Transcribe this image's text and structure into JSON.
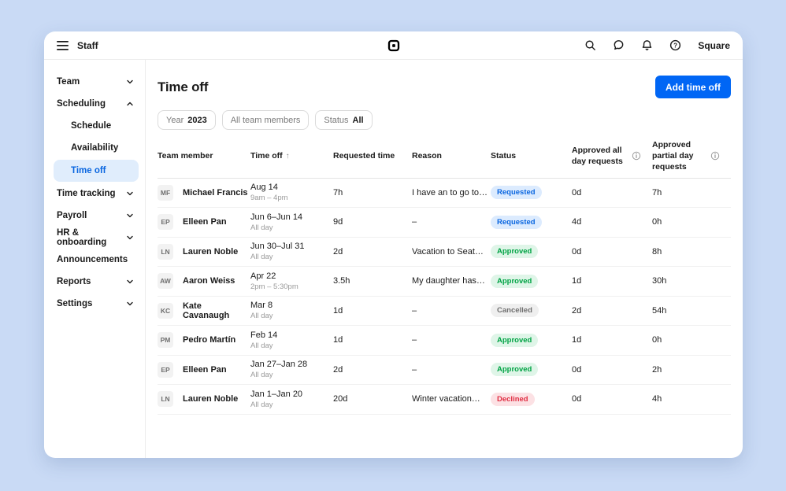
{
  "colors": {
    "page_background": "#C9DAF5",
    "accent_blue": "#0066F5",
    "selected_nav_bg": "#E0EDFC",
    "selected_nav_text": "#0A66E0"
  },
  "topbar": {
    "app_label": "Staff",
    "account_label": "Square",
    "icons": [
      "menu-icon",
      "square-logo-icon",
      "search-icon",
      "chat-icon",
      "notifications-icon",
      "help-icon"
    ]
  },
  "sidebar": {
    "items": [
      {
        "label": "Team",
        "level": 0,
        "chevron": "down"
      },
      {
        "label": "Scheduling",
        "level": 0,
        "chevron": "up"
      },
      {
        "label": "Schedule",
        "level": 1
      },
      {
        "label": "Availability",
        "level": 1
      },
      {
        "label": "Time off",
        "level": 1,
        "selected": true
      },
      {
        "label": "Time tracking",
        "level": 0,
        "chevron": "down"
      },
      {
        "label": "Payroll",
        "level": 0,
        "chevron": "down"
      },
      {
        "label": "HR & onboarding",
        "level": 0,
        "chevron": "down"
      },
      {
        "label": "Announcements",
        "level": 0
      },
      {
        "label": "Reports",
        "level": 0,
        "chevron": "down"
      },
      {
        "label": "Settings",
        "level": 0,
        "chevron": "down"
      }
    ]
  },
  "main": {
    "title": "Time off",
    "add_button_label": "Add time off",
    "filters": [
      {
        "label": "Year",
        "value": "2023"
      },
      {
        "label": "All team members",
        "value": ""
      },
      {
        "label": "Status",
        "value": "All"
      }
    ],
    "table": {
      "headers": [
        {
          "label": "Team member"
        },
        {
          "label": "Time off",
          "sorted": "asc"
        },
        {
          "label": "Requested time"
        },
        {
          "label": "Reason"
        },
        {
          "label": "Status"
        },
        {
          "label": "Approved all day requests",
          "info": true
        },
        {
          "label": "Approved partial day requests",
          "info": true
        }
      ],
      "rows": [
        {
          "initials": "MF",
          "name": "Michael Francis",
          "date": "Aug 14",
          "date_detail": "9am – 4pm",
          "requested_time": "7h",
          "reason": "I have an to go to…",
          "status": "Requested",
          "approved_all_day": "0d",
          "approved_partial_day": "7h"
        },
        {
          "initials": "EP",
          "name": "Elleen Pan",
          "date": "Jun 6–Jun 14",
          "date_detail": "All day",
          "requested_time": "9d",
          "reason": "–",
          "status": "Requested",
          "approved_all_day": "4d",
          "approved_partial_day": "0h"
        },
        {
          "initials": "LN",
          "name": "Lauren Noble",
          "date": "Jun 30–Jul 31",
          "date_detail": "All day",
          "requested_time": "2d",
          "reason": "Vacation to Seat…",
          "status": "Approved",
          "approved_all_day": "0d",
          "approved_partial_day": "8h"
        },
        {
          "initials": "AW",
          "name": "Aaron Weiss",
          "date": "Apr 22",
          "date_detail": "2pm – 5:30pm",
          "requested_time": "3.5h",
          "reason": "My daughter has…",
          "status": "Approved",
          "approved_all_day": "1d",
          "approved_partial_day": "30h"
        },
        {
          "initials": "KC",
          "name": "Kate Cavanaugh",
          "date": "Mar 8",
          "date_detail": "All day",
          "requested_time": "1d",
          "reason": "–",
          "status": "Cancelled",
          "approved_all_day": "2d",
          "approved_partial_day": "54h"
        },
        {
          "initials": "PM",
          "name": "Pedro Martín",
          "date": "Feb 14",
          "date_detail": "All day",
          "requested_time": "1d",
          "reason": "–",
          "status": "Approved",
          "approved_all_day": "1d",
          "approved_partial_day": "0h"
        },
        {
          "initials": "EP",
          "name": "Elleen Pan",
          "date": "Jan 27–Jan 28",
          "date_detail": "All day",
          "requested_time": "2d",
          "reason": "–",
          "status": "Approved",
          "approved_all_day": "0d",
          "approved_partial_day": "2h"
        },
        {
          "initials": "LN",
          "name": "Lauren Noble",
          "date": "Jan 1–Jan 20",
          "date_detail": "All day",
          "requested_time": "20d",
          "reason": "Winter vacation…",
          "status": "Declined",
          "approved_all_day": "0d",
          "approved_partial_day": "4h"
        }
      ],
      "status_styles": {
        "Requested": {
          "bg": "#DCEBFE",
          "text": "#0A66E0"
        },
        "Approved": {
          "bg": "#DFF5E8",
          "text": "#00A344"
        },
        "Cancelled": {
          "bg": "#EFEFEF",
          "text": "#6F6F6F"
        },
        "Declined": {
          "bg": "#FCE1E4",
          "text": "#E02F44"
        }
      }
    }
  }
}
